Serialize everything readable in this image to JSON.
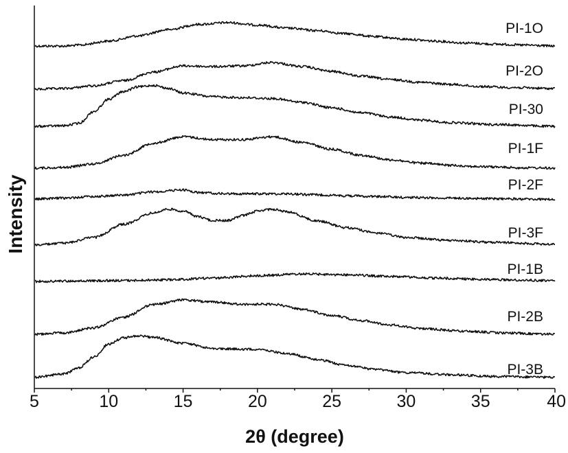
{
  "chart_data": {
    "type": "line",
    "xlabel": "2θ (degree)",
    "ylabel": "Intensity",
    "xlim": [
      5,
      40
    ],
    "xticks": [
      5,
      10,
      15,
      20,
      25,
      30,
      35,
      40
    ],
    "yaxis_numeric_ticks": false,
    "grid": false,
    "legend": "none (curves labelled at right end)",
    "line_color": "#111111",
    "series": [
      {
        "name": "PI-1O",
        "points": [
          [
            5,
            0.02
          ],
          [
            7,
            0.02
          ],
          [
            8,
            0.05
          ],
          [
            10,
            0.18
          ],
          [
            12,
            0.35
          ],
          [
            14,
            0.55
          ],
          [
            16,
            0.72
          ],
          [
            18,
            0.78
          ],
          [
            20,
            0.7
          ],
          [
            22,
            0.6
          ],
          [
            24,
            0.52
          ],
          [
            26,
            0.42
          ],
          [
            28,
            0.32
          ],
          [
            30,
            0.24
          ],
          [
            32,
            0.18
          ],
          [
            34,
            0.12
          ],
          [
            36,
            0.08
          ],
          [
            38,
            0.05
          ],
          [
            40,
            0.02
          ]
        ]
      },
      {
        "name": "PI-2O",
        "points": [
          [
            5,
            0.0
          ],
          [
            7,
            0.02
          ],
          [
            9,
            0.1
          ],
          [
            11,
            0.25
          ],
          [
            13,
            0.5
          ],
          [
            15,
            0.68
          ],
          [
            17,
            0.66
          ],
          [
            19,
            0.68
          ],
          [
            21,
            0.78
          ],
          [
            23,
            0.66
          ],
          [
            25,
            0.52
          ],
          [
            27,
            0.38
          ],
          [
            29,
            0.28
          ],
          [
            31,
            0.2
          ],
          [
            33,
            0.14
          ],
          [
            35,
            0.08
          ],
          [
            37,
            0.05
          ],
          [
            40,
            0.02
          ]
        ]
      },
      {
        "name": "PI-30",
        "points": [
          [
            5,
            0.02
          ],
          [
            7,
            0.04
          ],
          [
            8,
            0.12
          ],
          [
            9,
            0.5
          ],
          [
            10,
            0.9
          ],
          [
            11,
            1.15
          ],
          [
            12,
            1.3
          ],
          [
            13,
            1.35
          ],
          [
            14,
            1.25
          ],
          [
            15,
            1.1
          ],
          [
            17,
            0.98
          ],
          [
            19,
            0.95
          ],
          [
            21,
            0.92
          ],
          [
            23,
            0.8
          ],
          [
            25,
            0.62
          ],
          [
            27,
            0.46
          ],
          [
            29,
            0.32
          ],
          [
            31,
            0.22
          ],
          [
            33,
            0.14
          ],
          [
            36,
            0.08
          ],
          [
            40,
            0.02
          ]
        ]
      },
      {
        "name": "PI-1F",
        "points": [
          [
            5,
            0.02
          ],
          [
            7,
            0.04
          ],
          [
            9,
            0.14
          ],
          [
            11,
            0.38
          ],
          [
            13,
            0.72
          ],
          [
            15,
            0.9
          ],
          [
            17,
            0.82
          ],
          [
            19,
            0.82
          ],
          [
            21,
            0.9
          ],
          [
            23,
            0.74
          ],
          [
            25,
            0.55
          ],
          [
            27,
            0.38
          ],
          [
            29,
            0.25
          ],
          [
            31,
            0.16
          ],
          [
            33,
            0.1
          ],
          [
            35,
            0.06
          ],
          [
            38,
            0.03
          ],
          [
            40,
            0.02
          ]
        ]
      },
      {
        "name": "PI-2F",
        "points": [
          [
            5,
            0.02
          ],
          [
            7,
            0.05
          ],
          [
            9,
            0.1
          ],
          [
            11,
            0.14
          ],
          [
            13,
            0.24
          ],
          [
            15,
            0.3
          ],
          [
            16,
            0.22
          ],
          [
            18,
            0.18
          ],
          [
            20,
            0.18
          ],
          [
            22,
            0.18
          ],
          [
            24,
            0.15
          ],
          [
            26,
            0.12
          ],
          [
            28,
            0.1
          ],
          [
            30,
            0.07
          ],
          [
            33,
            0.05
          ],
          [
            36,
            0.03
          ],
          [
            40,
            0.01
          ]
        ]
      },
      {
        "name": "PI-3F",
        "points": [
          [
            5,
            0.0
          ],
          [
            7,
            0.05
          ],
          [
            9,
            0.2
          ],
          [
            11,
            0.55
          ],
          [
            13,
            0.85
          ],
          [
            14,
            0.95
          ],
          [
            15,
            0.9
          ],
          [
            16,
            0.75
          ],
          [
            17,
            0.65
          ],
          [
            18,
            0.65
          ],
          [
            19,
            0.78
          ],
          [
            20,
            0.9
          ],
          [
            21,
            0.95
          ],
          [
            22,
            0.88
          ],
          [
            24,
            0.64
          ],
          [
            26,
            0.46
          ],
          [
            28,
            0.32
          ],
          [
            30,
            0.2
          ],
          [
            33,
            0.12
          ],
          [
            36,
            0.07
          ],
          [
            40,
            0.02
          ]
        ]
      },
      {
        "name": "PI-1B",
        "points": [
          [
            5,
            0.0
          ],
          [
            8,
            0.01
          ],
          [
            11,
            0.02
          ],
          [
            14,
            0.04
          ],
          [
            17,
            0.08
          ],
          [
            20,
            0.14
          ],
          [
            23,
            0.18
          ],
          [
            26,
            0.16
          ],
          [
            29,
            0.12
          ],
          [
            32,
            0.08
          ],
          [
            35,
            0.05
          ],
          [
            38,
            0.03
          ],
          [
            40,
            0.01
          ]
        ]
      },
      {
        "name": "PI-2B",
        "points": [
          [
            5,
            0.02
          ],
          [
            7,
            0.06
          ],
          [
            9,
            0.2
          ],
          [
            11,
            0.5
          ],
          [
            13,
            0.85
          ],
          [
            15,
            0.98
          ],
          [
            17,
            0.92
          ],
          [
            19,
            0.86
          ],
          [
            21,
            0.86
          ],
          [
            23,
            0.72
          ],
          [
            25,
            0.55
          ],
          [
            27,
            0.4
          ],
          [
            29,
            0.28
          ],
          [
            31,
            0.18
          ],
          [
            34,
            0.1
          ],
          [
            37,
            0.05
          ],
          [
            40,
            0.02
          ]
        ]
      },
      {
        "name": "PI-3B",
        "points": [
          [
            5,
            0.02
          ],
          [
            7,
            0.1
          ],
          [
            8,
            0.25
          ],
          [
            9,
            0.5
          ],
          [
            10,
            0.8
          ],
          [
            11,
            0.95
          ],
          [
            12,
            1.0
          ],
          [
            13,
            0.96
          ],
          [
            15,
            0.82
          ],
          [
            17,
            0.7
          ],
          [
            19,
            0.68
          ],
          [
            20,
            0.68
          ],
          [
            22,
            0.58
          ],
          [
            24,
            0.44
          ],
          [
            26,
            0.3
          ],
          [
            28,
            0.2
          ],
          [
            30,
            0.13
          ],
          [
            33,
            0.08
          ],
          [
            36,
            0.04
          ],
          [
            40,
            0.02
          ]
        ]
      }
    ]
  }
}
